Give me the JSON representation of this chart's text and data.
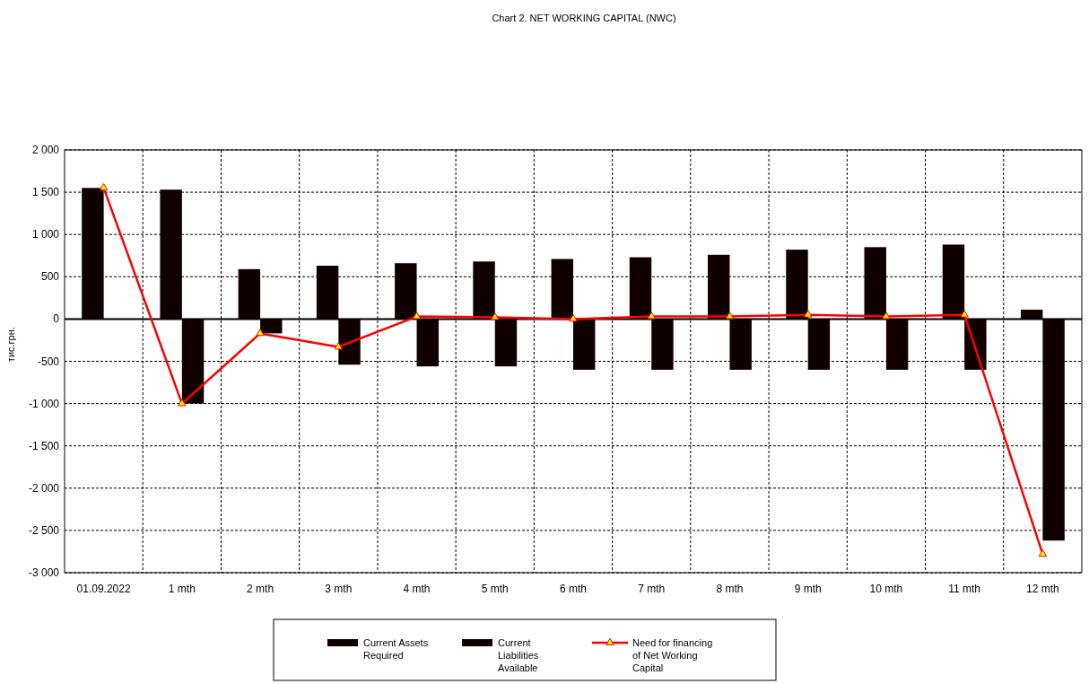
{
  "chart_data": {
    "type": "bar",
    "title": "Chart 2. NET WORKING CAPITAL (NWC)",
    "ylabel": "тис.грн.",
    "categories": [
      "01.09.2022",
      "1 mth",
      "2 mth",
      "3 mth",
      "4 mth",
      "5 mth",
      "6 mth",
      "7 mth",
      "8 mth",
      "9 mth",
      "10 mth",
      "11 mth",
      "12 mth"
    ],
    "series": [
      {
        "name": "Current Assets Required",
        "color": "#100000",
        "values": [
          1550,
          1530,
          590,
          630,
          660,
          680,
          710,
          730,
          760,
          820,
          850,
          880,
          110
        ]
      },
      {
        "name": "Current Liabilities Available",
        "color": "#100000",
        "values": [
          null,
          -1000,
          -170,
          -540,
          -560,
          -560,
          -600,
          -600,
          -600,
          -600,
          -600,
          -600,
          -2620
        ]
      },
      {
        "name": "Need for financing of Net Working Capital",
        "type": "line",
        "color": "#ff0000",
        "marker": "triangle",
        "values": [
          1550,
          -1000,
          -170,
          -330,
          30,
          20,
          0,
          30,
          30,
          50,
          30,
          50,
          -2780
        ]
      }
    ],
    "ylim": [
      -3000,
      2000
    ],
    "yticks": [
      {
        "value": -3000,
        "label": "-3 000"
      },
      {
        "value": -2500,
        "label": "-2 500"
      },
      {
        "value": -2000,
        "label": "-2 000"
      },
      {
        "value": -1500,
        "label": "-1 500"
      },
      {
        "value": -1000,
        "label": "-1 000"
      },
      {
        "value": -500,
        "label": "-500"
      },
      0,
      500,
      {
        "value": 1000,
        "label": "1 000"
      },
      {
        "value": 1500,
        "label": "1 500"
      },
      {
        "value": 2000,
        "label": "2 000"
      }
    ],
    "grid": true,
    "legend": "bottom"
  }
}
